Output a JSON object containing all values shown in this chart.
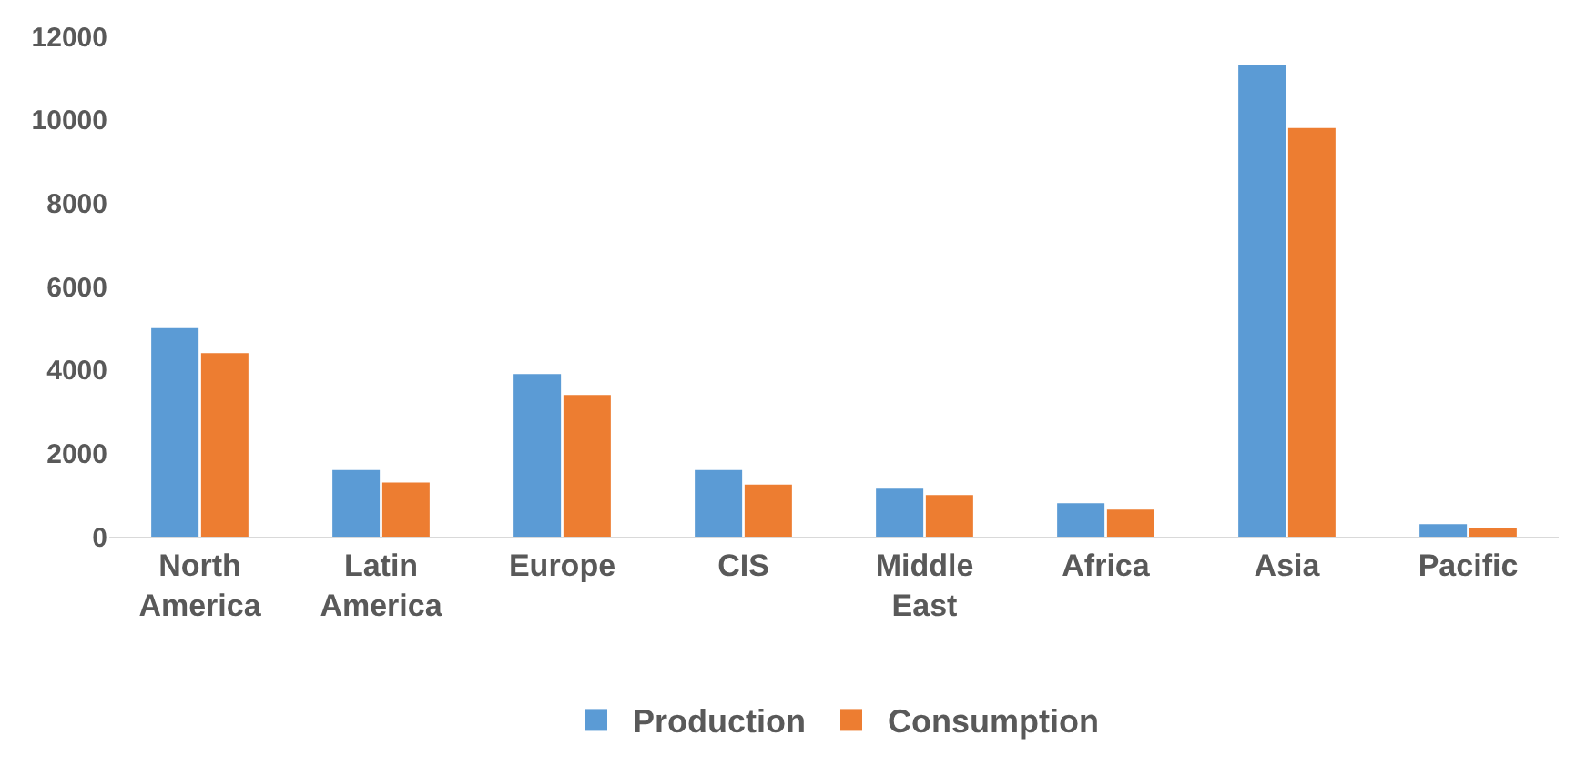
{
  "chart_data": {
    "type": "bar",
    "categories": [
      "North America",
      "Latin America",
      "Europe",
      "CIS",
      "Middle East",
      "Africa",
      "Asia",
      "Pacific"
    ],
    "series": [
      {
        "name": "Production",
        "color": "#5b9bd5",
        "values": [
          5000,
          1600,
          3900,
          1600,
          1150,
          800,
          11300,
          300
        ]
      },
      {
        "name": "Consumption",
        "color": "#ed7d31",
        "values": [
          4400,
          1300,
          3400,
          1250,
          1000,
          650,
          9800,
          200
        ]
      }
    ],
    "ylim": [
      0,
      12000
    ],
    "yticks": [
      0,
      2000,
      4000,
      6000,
      8000,
      10000,
      12000
    ],
    "grid": false,
    "legend": "bottom"
  }
}
